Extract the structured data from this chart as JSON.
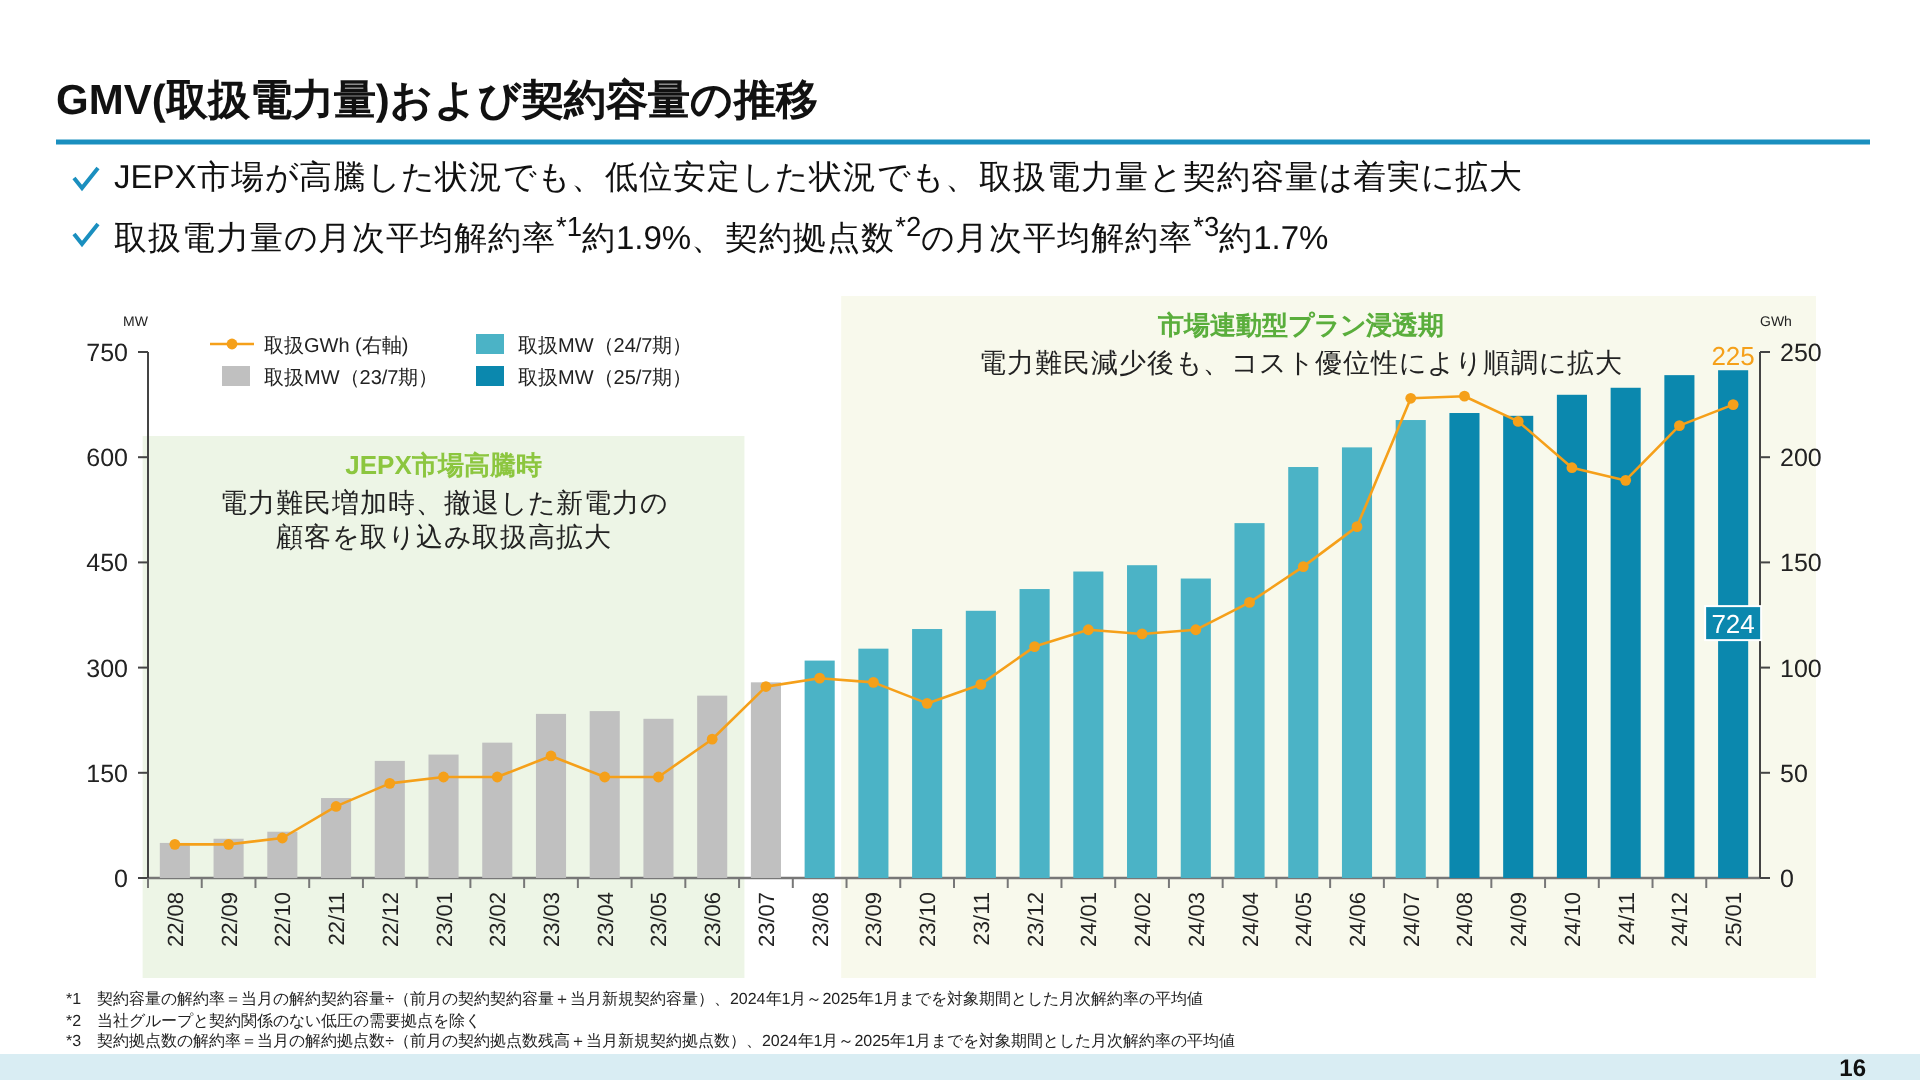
{
  "chart_data": {
    "type": "bar",
    "title": "GMV(取扱電力量)および契約容量の推移",
    "subtitle": "JEPX市場が高騰した状況でも、低位安定した状況でも、取扱電力量と契約容量は着実に拡大",
    "categories": [
      "22/08",
      "22/09",
      "22/10",
      "22/11",
      "22/12",
      "23/01",
      "23/02",
      "23/03",
      "23/04",
      "23/05",
      "23/06",
      "23/07",
      "23/08",
      "23/09",
      "23/10",
      "23/11",
      "23/12",
      "24/01",
      "24/02",
      "24/03",
      "24/04",
      "24/05",
      "24/06",
      "24/07",
      "24/08",
      "24/09",
      "24/10",
      "24/11",
      "24/12",
      "25/01"
    ],
    "series": [
      {
        "name": "取扱GWh (右軸)",
        "type": "line",
        "axis": "y2",
        "color": "#f5a01a",
        "marker": "circle",
        "values": [
          16,
          16,
          19,
          34,
          45,
          48,
          48,
          58,
          48,
          48,
          66,
          91,
          95,
          93,
          83,
          92,
          110,
          118,
          116,
          118,
          131,
          148,
          167,
          228,
          229,
          217,
          195,
          189,
          215,
          225
        ],
        "value_labels": [
          null,
          null,
          null,
          null,
          null,
          null,
          null,
          null,
          null,
          null,
          null,
          null,
          null,
          null,
          null,
          null,
          null,
          null,
          null,
          null,
          null,
          null,
          null,
          null,
          null,
          null,
          null,
          null,
          null,
          "225"
        ]
      },
      {
        "name": "取扱MW（23/7期）",
        "color": "#c0c0c0",
        "values": [
          50,
          56,
          66,
          114,
          167,
          176,
          193,
          234,
          238,
          227,
          260,
          279,
          null,
          null,
          null,
          null,
          null,
          null,
          null,
          null,
          null,
          null,
          null,
          null,
          null,
          null,
          null,
          null,
          null,
          null
        ]
      },
      {
        "name": "取扱MW（24/7期）",
        "color": "#4bb3c6",
        "values": [
          null,
          null,
          null,
          null,
          null,
          null,
          null,
          null,
          null,
          null,
          null,
          null,
          310,
          327,
          355,
          381,
          412,
          437,
          446,
          427,
          506,
          586,
          614,
          653,
          null,
          null,
          null,
          null,
          null,
          null
        ]
      },
      {
        "name": "取扱MW（25/7期）",
        "color": "#0b88ae",
        "values": [
          null,
          null,
          null,
          null,
          null,
          null,
          null,
          null,
          null,
          null,
          null,
          null,
          null,
          null,
          null,
          null,
          null,
          null,
          null,
          null,
          null,
          null,
          null,
          null,
          663,
          659,
          689,
          699,
          717,
          724
        ],
        "value_labels": [
          null,
          null,
          null,
          null,
          null,
          null,
          null,
          null,
          null,
          null,
          null,
          null,
          null,
          null,
          null,
          null,
          null,
          null,
          null,
          null,
          null,
          null,
          null,
          null,
          null,
          null,
          null,
          null,
          null,
          "724"
        ]
      }
    ],
    "stacked": true,
    "ylabel": "MW",
    "y2label": "GWh",
    "ylim": [
      0,
      750
    ],
    "yticks": [
      0,
      150,
      300,
      450,
      600,
      750
    ],
    "y2lim": [
      0,
      250
    ],
    "y2ticks": [
      0,
      50,
      100,
      150,
      200,
      250
    ],
    "legend": "top left",
    "bands": [
      {
        "axis": "x",
        "from": "22/08",
        "to": "23/06",
        "label": "JEPX市場高騰時",
        "color": "#edf5e6"
      },
      {
        "axis": "x",
        "from": "23/09",
        "to": "25/01",
        "label": "市場連動型プラン浸透期",
        "color": "#f8f9ec"
      }
    ],
    "annotations": [
      "取扱電力量の月次平均解約率$^{*1}$約1.9%、契約拠点数$^{*2}$の月次平均解約率$^{*3}$約1.7%",
      "電力難民増加時、撤退した新電力の顧客を取り込み取扱高拡大",
      "電力難民減少後も、コスト優位性により順調に拡大",
      "*1　契約容量の解約率＝当月の解約契約容量÷（前月の契約契約容量＋当月新規契約容量）、2024年1月～2025年1月までを対象期間とした月次解約率の平均値",
      "*2　当社グループと契約関係のない低圧の需要拠点を除く",
      "*3　契約拠点数の解約率＝当月の解約拠点数÷（前月の契約拠点数残高＋当月新規契約拠点数）、2024年1月～2025年1月までを対象期間とした月次解約率の平均値",
      "16"
    ]
  }
}
